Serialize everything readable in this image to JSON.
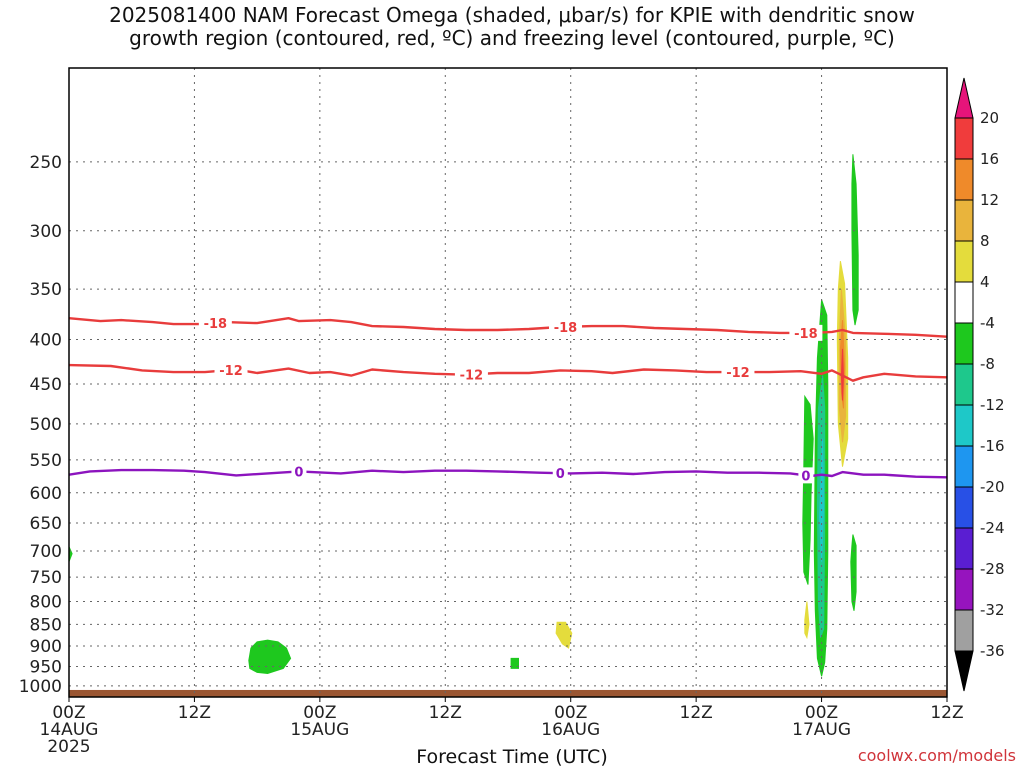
{
  "title_lines": [
    "2025081400 NAM Forecast Omega (shaded, μbar/s) for KPIE with dendritic snow",
    "growth region (contoured, red, ºC) and freezing level (contoured, purple, ºC)"
  ],
  "xlabel": "Forecast Time (UTC)",
  "credit": "coolwx.com/models",
  "chart_data": {
    "type": "heatmap",
    "y_axis": {
      "scale": "log",
      "reversed": true,
      "range_hpa": [
        1030,
        195
      ],
      "ticks": [
        250,
        300,
        350,
        400,
        450,
        500,
        550,
        600,
        650,
        700,
        750,
        800,
        850,
        900,
        950,
        1000
      ]
    },
    "x_axis": {
      "range_hours": [
        0,
        84
      ],
      "ticks": [
        {
          "h": 0,
          "lines": [
            "00Z",
            "14AUG",
            "2025"
          ]
        },
        {
          "h": 12,
          "lines": [
            "12Z"
          ]
        },
        {
          "h": 24,
          "lines": [
            "00Z",
            "15AUG"
          ]
        },
        {
          "h": 36,
          "lines": [
            "12Z"
          ]
        },
        {
          "h": 48,
          "lines": [
            "00Z",
            "16AUG"
          ]
        },
        {
          "h": 60,
          "lines": [
            "12Z"
          ]
        },
        {
          "h": 72,
          "lines": [
            "00Z",
            "17AUG"
          ]
        },
        {
          "h": 84,
          "lines": [
            "12Z"
          ]
        }
      ]
    },
    "grid": true,
    "colorbar": {
      "labels": [
        "20",
        "16",
        "12",
        "8",
        "4",
        "-4",
        "-8",
        "-12",
        "-16",
        "-20",
        "-24",
        "-28",
        "-32",
        "-36"
      ],
      "bins": [
        {
          "range": [
            16,
            20
          ],
          "color": "#f03c3c"
        },
        {
          "range": [
            12,
            16
          ],
          "color": "#ef8a2a"
        },
        {
          "range": [
            8,
            12
          ],
          "color": "#e9b43c"
        },
        {
          "range": [
            4,
            8
          ],
          "color": "#e4dc3c"
        },
        {
          "range": [
            -4,
            4
          ],
          "color": "#ffffff"
        },
        {
          "range": [
            -8,
            -4
          ],
          "color": "#1ec81e"
        },
        {
          "range": [
            -12,
            -8
          ],
          "color": "#1ec88c"
        },
        {
          "range": [
            -16,
            -12
          ],
          "color": "#1ec8c8"
        },
        {
          "range": [
            -20,
            -16
          ],
          "color": "#1e96f0"
        },
        {
          "range": [
            -24,
            -20
          ],
          "color": "#2850e6"
        },
        {
          "range": [
            -28,
            -24
          ],
          "color": "#5a1ed2"
        },
        {
          "range": [
            -32,
            -28
          ],
          "color": "#9614be"
        },
        {
          "range": [
            -36,
            -32
          ],
          "color": "#a0a0a0"
        }
      ],
      "top_color": "#e6147a",
      "bottom_color": "#000000"
    },
    "contours": [
      {
        "label": "-18",
        "color": "#e83c3c",
        "points": [
          [
            0,
            378
          ],
          [
            3,
            381
          ],
          [
            5,
            380
          ],
          [
            8,
            382
          ],
          [
            10,
            384
          ],
          [
            13,
            384
          ],
          [
            15,
            382
          ],
          [
            18,
            383
          ],
          [
            21,
            378
          ],
          [
            22,
            381
          ],
          [
            25,
            380
          ],
          [
            27,
            382
          ],
          [
            29,
            386
          ],
          [
            32,
            387
          ],
          [
            35,
            389
          ],
          [
            38,
            390
          ],
          [
            41,
            390
          ],
          [
            44,
            389
          ],
          [
            47,
            387
          ],
          [
            50,
            386
          ],
          [
            53,
            386
          ],
          [
            56,
            388
          ],
          [
            59,
            389
          ],
          [
            62,
            390
          ],
          [
            65,
            392
          ],
          [
            68,
            393
          ],
          [
            71,
            393
          ],
          [
            73,
            392
          ],
          [
            74,
            390
          ],
          [
            75,
            393
          ],
          [
            78,
            394
          ],
          [
            81,
            395
          ],
          [
            84,
            397
          ]
        ],
        "labels_at": [
          14,
          47.5,
          70.5
        ]
      },
      {
        "label": "-12",
        "color": "#e83c3c",
        "points": [
          [
            0,
            428
          ],
          [
            4,
            429
          ],
          [
            7,
            434
          ],
          [
            10,
            436
          ],
          [
            13,
            436
          ],
          [
            16,
            433
          ],
          [
            18,
            437
          ],
          [
            21,
            432
          ],
          [
            23,
            437
          ],
          [
            25,
            436
          ],
          [
            27,
            440
          ],
          [
            29,
            433
          ],
          [
            32,
            436
          ],
          [
            35,
            438
          ],
          [
            38,
            439
          ],
          [
            41,
            437
          ],
          [
            44,
            437
          ],
          [
            47,
            434
          ],
          [
            50,
            435
          ],
          [
            52,
            437
          ],
          [
            55,
            433
          ],
          [
            58,
            434
          ],
          [
            61,
            436
          ],
          [
            64,
            436
          ],
          [
            67,
            436
          ],
          [
            70,
            435
          ],
          [
            72,
            438
          ],
          [
            73,
            434
          ],
          [
            74,
            440
          ],
          [
            75,
            446
          ],
          [
            76,
            442
          ],
          [
            78,
            438
          ],
          [
            81,
            441
          ],
          [
            84,
            442
          ]
        ],
        "labels_at": [
          15.5,
          38.5,
          64
        ]
      },
      {
        "label": "0",
        "color": "#8c14be",
        "points": [
          [
            0,
            572
          ],
          [
            2,
            567
          ],
          [
            5,
            565
          ],
          [
            8,
            565
          ],
          [
            11,
            566
          ],
          [
            13,
            568
          ],
          [
            16,
            573
          ],
          [
            19,
            570
          ],
          [
            22,
            567
          ],
          [
            26,
            570
          ],
          [
            29,
            566
          ],
          [
            32,
            568
          ],
          [
            35,
            566
          ],
          [
            38,
            566
          ],
          [
            41,
            567
          ],
          [
            45,
            569
          ],
          [
            48,
            570
          ],
          [
            51,
            569
          ],
          [
            54,
            571
          ],
          [
            57,
            568
          ],
          [
            60,
            567
          ],
          [
            63,
            569
          ],
          [
            66,
            569
          ],
          [
            69,
            570
          ],
          [
            71,
            574
          ],
          [
            72,
            572
          ],
          [
            73,
            574
          ],
          [
            74,
            568
          ],
          [
            76,
            572
          ],
          [
            78,
            572
          ],
          [
            81,
            575
          ],
          [
            84,
            576
          ]
        ],
        "labels_at": [
          22.0,
          47.0,
          70.5
        ]
      }
    ],
    "omega_blobs": [
      {
        "color": "#1ec81e",
        "pts": [
          [
            17.2,
            935
          ],
          [
            17.4,
            905
          ],
          [
            18.0,
            890
          ],
          [
            19.0,
            886
          ],
          [
            20.0,
            890
          ],
          [
            20.8,
            905
          ],
          [
            21.2,
            930
          ],
          [
            20.5,
            955
          ],
          [
            19.0,
            968
          ],
          [
            18.0,
            965
          ],
          [
            17.3,
            955
          ]
        ]
      },
      {
        "color": "#1ec81e",
        "pts": [
          [
            42.3,
            930
          ],
          [
            43.0,
            930
          ],
          [
            43.0,
            955
          ],
          [
            42.3,
            955
          ]
        ]
      },
      {
        "color": "#e4dc3c",
        "pts": [
          [
            46.7,
            845
          ],
          [
            47.5,
            845
          ],
          [
            48.1,
            870
          ],
          [
            47.8,
            905
          ],
          [
            47.2,
            895
          ],
          [
            46.6,
            870
          ]
        ]
      },
      {
        "color": "#1ec81e",
        "pts": [
          [
            0,
            692
          ],
          [
            0.3,
            705
          ],
          [
            0,
            720
          ]
        ]
      },
      {
        "color": "#1ec81e",
        "pts": [
          [
            70.4,
            465
          ],
          [
            70.9,
            475
          ],
          [
            71.2,
            520
          ],
          [
            71.0,
            600
          ],
          [
            70.9,
            680
          ],
          [
            70.7,
            765
          ],
          [
            70.3,
            740
          ],
          [
            70.2,
            650
          ],
          [
            70.3,
            560
          ]
        ]
      },
      {
        "color": "#e4dc3c",
        "pts": [
          [
            70.4,
            840
          ],
          [
            70.6,
            800
          ],
          [
            70.8,
            850
          ],
          [
            70.6,
            880
          ],
          [
            70.4,
            870
          ]
        ]
      },
      {
        "color": "#1ec81e",
        "pts": [
          [
            72.0,
            360
          ],
          [
            72.5,
            375
          ],
          [
            72.6,
            450
          ],
          [
            72.6,
            700
          ],
          [
            72.5,
            860
          ],
          [
            72.3,
            940
          ],
          [
            72.0,
            975
          ],
          [
            71.6,
            930
          ],
          [
            71.4,
            820
          ],
          [
            71.3,
            700
          ],
          [
            71.4,
            520
          ],
          [
            71.6,
            420
          ]
        ]
      },
      {
        "color": "#1ec88c",
        "pts": [
          [
            72.1,
            440
          ],
          [
            72.3,
            480
          ],
          [
            72.3,
            650
          ],
          [
            72.2,
            860
          ],
          [
            71.9,
            880
          ],
          [
            71.7,
            800
          ],
          [
            71.6,
            620
          ],
          [
            71.7,
            480
          ]
        ]
      },
      {
        "color": "#1ec8c8",
        "pts": [
          [
            72.1,
            520
          ],
          [
            72.2,
            620
          ],
          [
            72.0,
            720
          ],
          [
            71.8,
            640
          ]
        ]
      },
      {
        "color": "#e4dc3c",
        "pts": [
          [
            73.8,
            325
          ],
          [
            74.2,
            345
          ],
          [
            74.5,
            420
          ],
          [
            74.5,
            520
          ],
          [
            74.0,
            560
          ],
          [
            73.6,
            500
          ],
          [
            73.5,
            400
          ],
          [
            73.6,
            350
          ]
        ]
      },
      {
        "color": "#e9b43c",
        "pts": [
          [
            73.9,
            350
          ],
          [
            74.3,
            400
          ],
          [
            74.3,
            490
          ],
          [
            74.0,
            525
          ],
          [
            73.7,
            480
          ],
          [
            73.7,
            400
          ]
        ]
      },
      {
        "color": "#ef8a2a",
        "pts": [
          [
            74.0,
            380
          ],
          [
            74.2,
            430
          ],
          [
            74.1,
            480
          ],
          [
            73.9,
            460
          ],
          [
            73.8,
            410
          ]
        ]
      },
      {
        "color": "#f03c3c",
        "pts": [
          [
            74.0,
            410
          ],
          [
            74.1,
            440
          ],
          [
            74.0,
            470
          ],
          [
            73.9,
            440
          ]
        ]
      },
      {
        "color": "#1ec81e",
        "pts": [
          [
            75.0,
            245
          ],
          [
            75.3,
            265
          ],
          [
            75.5,
            320
          ],
          [
            75.5,
            370
          ],
          [
            75.2,
            385
          ],
          [
            75.0,
            370
          ],
          [
            74.9,
            300
          ],
          [
            74.9,
            265
          ]
        ]
      },
      {
        "color": "#1ec81e",
        "pts": [
          [
            75.0,
            670
          ],
          [
            75.3,
            690
          ],
          [
            75.3,
            780
          ],
          [
            75.1,
            820
          ],
          [
            74.9,
            800
          ],
          [
            74.8,
            720
          ],
          [
            74.9,
            690
          ]
        ]
      }
    ],
    "ground": {
      "color": "#9a5632",
      "top_hpa": 1011
    }
  }
}
